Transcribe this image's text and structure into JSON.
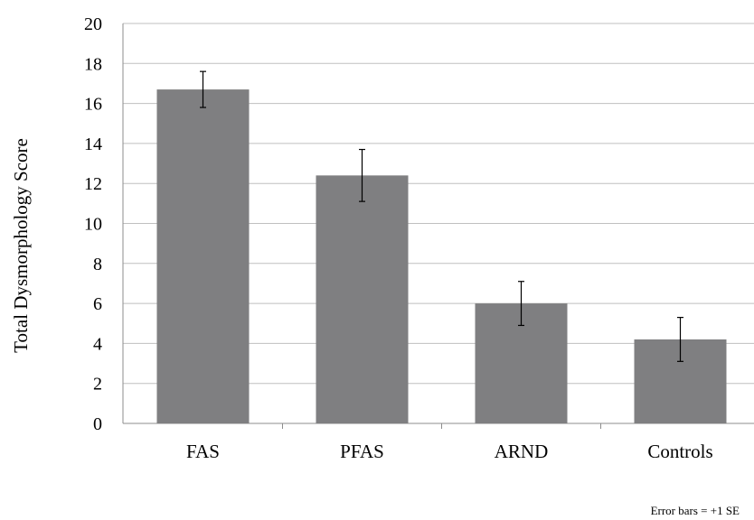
{
  "chart_data": {
    "type": "bar",
    "categories": [
      "FAS",
      "PFAS",
      "ARND",
      "Controls"
    ],
    "values": [
      16.7,
      12.4,
      6.0,
      4.2
    ],
    "error_plus": [
      0.9,
      1.3,
      1.1,
      1.1
    ],
    "error_minus": [
      0.9,
      1.3,
      1.1,
      1.1
    ],
    "ylabel": "Total Dysmorphology  Score",
    "xlabel": "",
    "ylim": [
      0,
      20
    ],
    "yticks": [
      "0",
      "2",
      "4",
      "6",
      "8",
      "10",
      "12",
      "14",
      "16",
      "18",
      "20"
    ],
    "grid": true,
    "legend": "none",
    "annotation": "Error bars = +1 SE",
    "colors": {
      "bar": "#7f7f81",
      "grid": "#bfbfbf",
      "axis": "#8c8c8c",
      "error": "#000000"
    }
  }
}
